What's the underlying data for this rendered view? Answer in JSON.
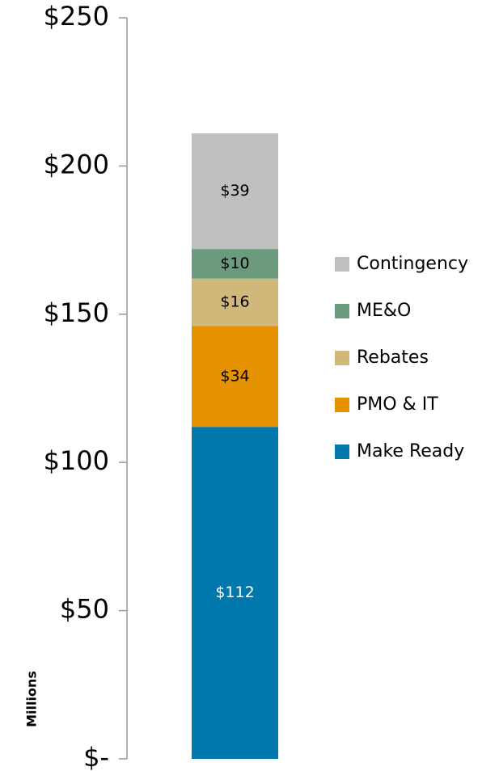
{
  "chart_data": {
    "type": "stacked_bar",
    "y_axis_label": "Millions",
    "categories": [
      null
    ],
    "series": [
      {
        "name": "Make Ready",
        "color": "#0078ae",
        "values": [
          112
        ],
        "value_labels": [
          "$112"
        ],
        "label_color": "#ffffff"
      },
      {
        "name": "PMO & IT",
        "color": "#e69100",
        "values": [
          34
        ],
        "value_labels": [
          "$34"
        ],
        "label_color": "#000000"
      },
      {
        "name": "Rebates",
        "color": "#cfb87a",
        "values": [
          16
        ],
        "value_labels": [
          "$16"
        ],
        "label_color": "#000000"
      },
      {
        "name": "ME&O",
        "color": "#6b9b7c",
        "values": [
          10
        ],
        "value_labels": [
          "$10"
        ],
        "label_color": "#000000"
      },
      {
        "name": "Contingency",
        "color": "#bfbfbf",
        "values": [
          39
        ],
        "value_labels": [
          "$39"
        ],
        "label_color": "#000000"
      }
    ],
    "ylim": [
      0,
      250
    ],
    "yticks": [
      {
        "value": 0,
        "label": "$-"
      },
      {
        "value": 50,
        "label": "$50"
      },
      {
        "value": 100,
        "label": "$100"
      },
      {
        "value": 150,
        "label": "$150"
      },
      {
        "value": 200,
        "label": "$200"
      },
      {
        "value": 250,
        "label": "$250"
      }
    ],
    "legend": "right",
    "legend_order": "reverse"
  }
}
